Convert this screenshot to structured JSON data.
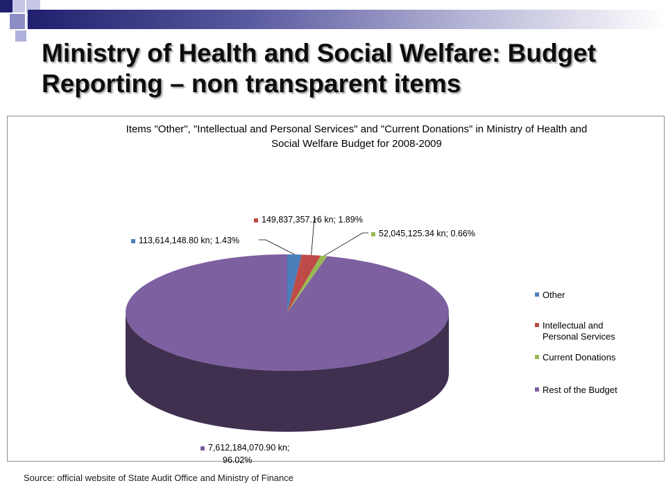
{
  "slide": {
    "title": "Ministry of Health and Social Welfare: Budget Reporting – non transparent items",
    "source": "Source: official website of State Audit Office and Ministry of Finance"
  },
  "chart_data": {
    "type": "pie",
    "title_lines": [
      "Items \"Other\", \"Intellectual and Personal Services\" and \"Current Donations\" in Ministry of Health and",
      "Social Welfare Budget for 2008-2009"
    ],
    "categories": [
      "Other",
      "Intellectual and Personal Services",
      "Current Donations",
      "Rest of the Budget"
    ],
    "values": [
      113614148.8,
      149837357.16,
      52045125.34,
      7612184070.9
    ],
    "percentages": [
      1.43,
      1.89,
      0.66,
      96.02
    ],
    "data_labels": [
      "113,614,148.80 kn; 1.43%",
      "149,837,357.16 kn; 1.89%",
      "52,045,125.34 kn; 0.66%",
      "7,612,184,070.90 kn; 96.02%"
    ],
    "data_label_lines_rest": [
      "7,612,184,070.90 kn;",
      "96.02%"
    ],
    "colors": [
      "#4a7ebb",
      "#be4b48",
      "#98b954",
      "#7d60a0"
    ],
    "legend_placement": "right",
    "style": "3d"
  }
}
